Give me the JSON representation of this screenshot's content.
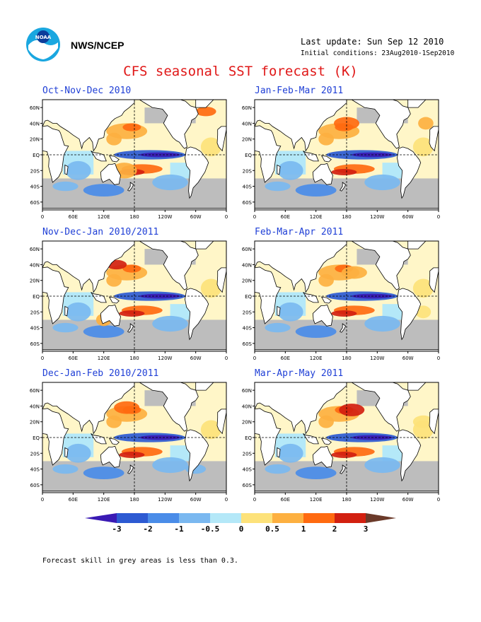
{
  "header": {
    "org": "NWS/NCEP",
    "last_update": "Last update: Sun Sep 12 2010",
    "initial_conditions": "Initial conditions: 23Aug2010-1Sep2010",
    "title": "CFS seasonal SST forecast (K)",
    "logo": "noaa-logo"
  },
  "axes": {
    "lat_labels": [
      "60N",
      "40N",
      "20N",
      "EQ",
      "20S",
      "40S",
      "60S"
    ],
    "lon_labels": [
      "0",
      "60E",
      "120E",
      "180",
      "120W",
      "60W",
      "0"
    ]
  },
  "panels": [
    {
      "title": "Oct-Nov-Dec 2010"
    },
    {
      "title": "Jan-Feb-Mar 2011"
    },
    {
      "title": "Nov-Dec-Jan 2010/2011"
    },
    {
      "title": "Feb-Mar-Apr 2011"
    },
    {
      "title": "Dec-Jan-Feb 2010/2011"
    },
    {
      "title": "Mar-Apr-May 2011"
    }
  ],
  "colorbar": {
    "labels": [
      "-3",
      "-2",
      "-1",
      "-0.5",
      "0",
      "0.5",
      "1",
      "2",
      "3"
    ],
    "colors": [
      "#3a1ab4",
      "#2d5ad2",
      "#4a8ce8",
      "#7ab8f0",
      "#b4e8f8",
      "#fde27a",
      "#fdb040",
      "#ff6a10",
      "#d22010",
      "#9a0a0a",
      "#6b3a2a"
    ]
  },
  "colors": {
    "title": "#e01818",
    "panel_title": "#1f3fd6",
    "land": "#ffffff",
    "low_skill": "#bdbdbd"
  },
  "footer": {
    "note": "Forecast skill in grey areas is less than 0.3."
  }
}
